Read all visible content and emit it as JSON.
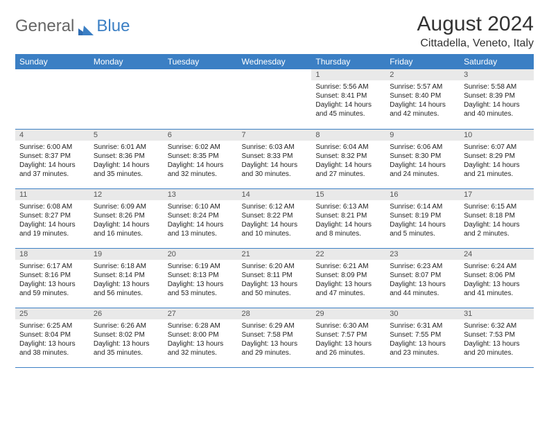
{
  "logo": {
    "part1": "General",
    "part2": "Blue"
  },
  "title": "August 2024",
  "subtitle": "Cittadella, Veneto, Italy",
  "colors": {
    "header_bg": "#3b7fc4",
    "header_text": "#ffffff",
    "daynum_bg": "#e9e9e9",
    "border": "#3b7fc4",
    "text": "#222222",
    "title": "#333333"
  },
  "weekdays": [
    "Sunday",
    "Monday",
    "Tuesday",
    "Wednesday",
    "Thursday",
    "Friday",
    "Saturday"
  ],
  "weeks": [
    [
      {
        "blank": true
      },
      {
        "blank": true
      },
      {
        "blank": true
      },
      {
        "blank": true
      },
      {
        "day": "1",
        "sunrise": "Sunrise: 5:56 AM",
        "sunset": "Sunset: 8:41 PM",
        "daylight": "Daylight: 14 hours and 45 minutes."
      },
      {
        "day": "2",
        "sunrise": "Sunrise: 5:57 AM",
        "sunset": "Sunset: 8:40 PM",
        "daylight": "Daylight: 14 hours and 42 minutes."
      },
      {
        "day": "3",
        "sunrise": "Sunrise: 5:58 AM",
        "sunset": "Sunset: 8:39 PM",
        "daylight": "Daylight: 14 hours and 40 minutes."
      }
    ],
    [
      {
        "day": "4",
        "sunrise": "Sunrise: 6:00 AM",
        "sunset": "Sunset: 8:37 PM",
        "daylight": "Daylight: 14 hours and 37 minutes."
      },
      {
        "day": "5",
        "sunrise": "Sunrise: 6:01 AM",
        "sunset": "Sunset: 8:36 PM",
        "daylight": "Daylight: 14 hours and 35 minutes."
      },
      {
        "day": "6",
        "sunrise": "Sunrise: 6:02 AM",
        "sunset": "Sunset: 8:35 PM",
        "daylight": "Daylight: 14 hours and 32 minutes."
      },
      {
        "day": "7",
        "sunrise": "Sunrise: 6:03 AM",
        "sunset": "Sunset: 8:33 PM",
        "daylight": "Daylight: 14 hours and 30 minutes."
      },
      {
        "day": "8",
        "sunrise": "Sunrise: 6:04 AM",
        "sunset": "Sunset: 8:32 PM",
        "daylight": "Daylight: 14 hours and 27 minutes."
      },
      {
        "day": "9",
        "sunrise": "Sunrise: 6:06 AM",
        "sunset": "Sunset: 8:30 PM",
        "daylight": "Daylight: 14 hours and 24 minutes."
      },
      {
        "day": "10",
        "sunrise": "Sunrise: 6:07 AM",
        "sunset": "Sunset: 8:29 PM",
        "daylight": "Daylight: 14 hours and 21 minutes."
      }
    ],
    [
      {
        "day": "11",
        "sunrise": "Sunrise: 6:08 AM",
        "sunset": "Sunset: 8:27 PM",
        "daylight": "Daylight: 14 hours and 19 minutes."
      },
      {
        "day": "12",
        "sunrise": "Sunrise: 6:09 AM",
        "sunset": "Sunset: 8:26 PM",
        "daylight": "Daylight: 14 hours and 16 minutes."
      },
      {
        "day": "13",
        "sunrise": "Sunrise: 6:10 AM",
        "sunset": "Sunset: 8:24 PM",
        "daylight": "Daylight: 14 hours and 13 minutes."
      },
      {
        "day": "14",
        "sunrise": "Sunrise: 6:12 AM",
        "sunset": "Sunset: 8:22 PM",
        "daylight": "Daylight: 14 hours and 10 minutes."
      },
      {
        "day": "15",
        "sunrise": "Sunrise: 6:13 AM",
        "sunset": "Sunset: 8:21 PM",
        "daylight": "Daylight: 14 hours and 8 minutes."
      },
      {
        "day": "16",
        "sunrise": "Sunrise: 6:14 AM",
        "sunset": "Sunset: 8:19 PM",
        "daylight": "Daylight: 14 hours and 5 minutes."
      },
      {
        "day": "17",
        "sunrise": "Sunrise: 6:15 AM",
        "sunset": "Sunset: 8:18 PM",
        "daylight": "Daylight: 14 hours and 2 minutes."
      }
    ],
    [
      {
        "day": "18",
        "sunrise": "Sunrise: 6:17 AM",
        "sunset": "Sunset: 8:16 PM",
        "daylight": "Daylight: 13 hours and 59 minutes."
      },
      {
        "day": "19",
        "sunrise": "Sunrise: 6:18 AM",
        "sunset": "Sunset: 8:14 PM",
        "daylight": "Daylight: 13 hours and 56 minutes."
      },
      {
        "day": "20",
        "sunrise": "Sunrise: 6:19 AM",
        "sunset": "Sunset: 8:13 PM",
        "daylight": "Daylight: 13 hours and 53 minutes."
      },
      {
        "day": "21",
        "sunrise": "Sunrise: 6:20 AM",
        "sunset": "Sunset: 8:11 PM",
        "daylight": "Daylight: 13 hours and 50 minutes."
      },
      {
        "day": "22",
        "sunrise": "Sunrise: 6:21 AM",
        "sunset": "Sunset: 8:09 PM",
        "daylight": "Daylight: 13 hours and 47 minutes."
      },
      {
        "day": "23",
        "sunrise": "Sunrise: 6:23 AM",
        "sunset": "Sunset: 8:07 PM",
        "daylight": "Daylight: 13 hours and 44 minutes."
      },
      {
        "day": "24",
        "sunrise": "Sunrise: 6:24 AM",
        "sunset": "Sunset: 8:06 PM",
        "daylight": "Daylight: 13 hours and 41 minutes."
      }
    ],
    [
      {
        "day": "25",
        "sunrise": "Sunrise: 6:25 AM",
        "sunset": "Sunset: 8:04 PM",
        "daylight": "Daylight: 13 hours and 38 minutes."
      },
      {
        "day": "26",
        "sunrise": "Sunrise: 6:26 AM",
        "sunset": "Sunset: 8:02 PM",
        "daylight": "Daylight: 13 hours and 35 minutes."
      },
      {
        "day": "27",
        "sunrise": "Sunrise: 6:28 AM",
        "sunset": "Sunset: 8:00 PM",
        "daylight": "Daylight: 13 hours and 32 minutes."
      },
      {
        "day": "28",
        "sunrise": "Sunrise: 6:29 AM",
        "sunset": "Sunset: 7:58 PM",
        "daylight": "Daylight: 13 hours and 29 minutes."
      },
      {
        "day": "29",
        "sunrise": "Sunrise: 6:30 AM",
        "sunset": "Sunset: 7:57 PM",
        "daylight": "Daylight: 13 hours and 26 minutes."
      },
      {
        "day": "30",
        "sunrise": "Sunrise: 6:31 AM",
        "sunset": "Sunset: 7:55 PM",
        "daylight": "Daylight: 13 hours and 23 minutes."
      },
      {
        "day": "31",
        "sunrise": "Sunrise: 6:32 AM",
        "sunset": "Sunset: 7:53 PM",
        "daylight": "Daylight: 13 hours and 20 minutes."
      }
    ]
  ]
}
